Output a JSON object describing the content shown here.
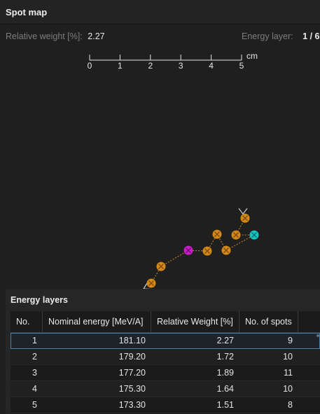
{
  "panel": {
    "title": "Spot map"
  },
  "info": {
    "relative_weight_label": "Relative weight [%]:",
    "relative_weight_value": "2.27",
    "energy_layer_label": "Energy layer:",
    "energy_layer_value": "1 / 6"
  },
  "scale": {
    "ticks": [
      "0",
      "1",
      "2",
      "3",
      "4",
      "5"
    ],
    "unit": "cm"
  },
  "colors": {
    "spot_regular": "#d4881a",
    "spot_start": "#c91fc9",
    "spot_end": "#17c4c4",
    "path": "#c58a2a",
    "selection_outline": "#4a7fa6"
  },
  "energy_layers": {
    "title": "Energy layers",
    "columns": [
      "No.",
      "Nominal energy [MeV/A]",
      "Relative Weight [%]",
      "No. of spots"
    ],
    "rows": [
      {
        "no": "1",
        "energy": "181.10",
        "weight": "2.27",
        "spots": "9"
      },
      {
        "no": "2",
        "energy": "179.20",
        "weight": "1.72",
        "spots": "10"
      },
      {
        "no": "3",
        "energy": "177.20",
        "weight": "1.89",
        "spots": "11"
      },
      {
        "no": "4",
        "energy": "175.30",
        "weight": "1.64",
        "spots": "10"
      },
      {
        "no": "5",
        "energy": "173.30",
        "weight": "1.51",
        "spots": "8"
      }
    ]
  }
}
